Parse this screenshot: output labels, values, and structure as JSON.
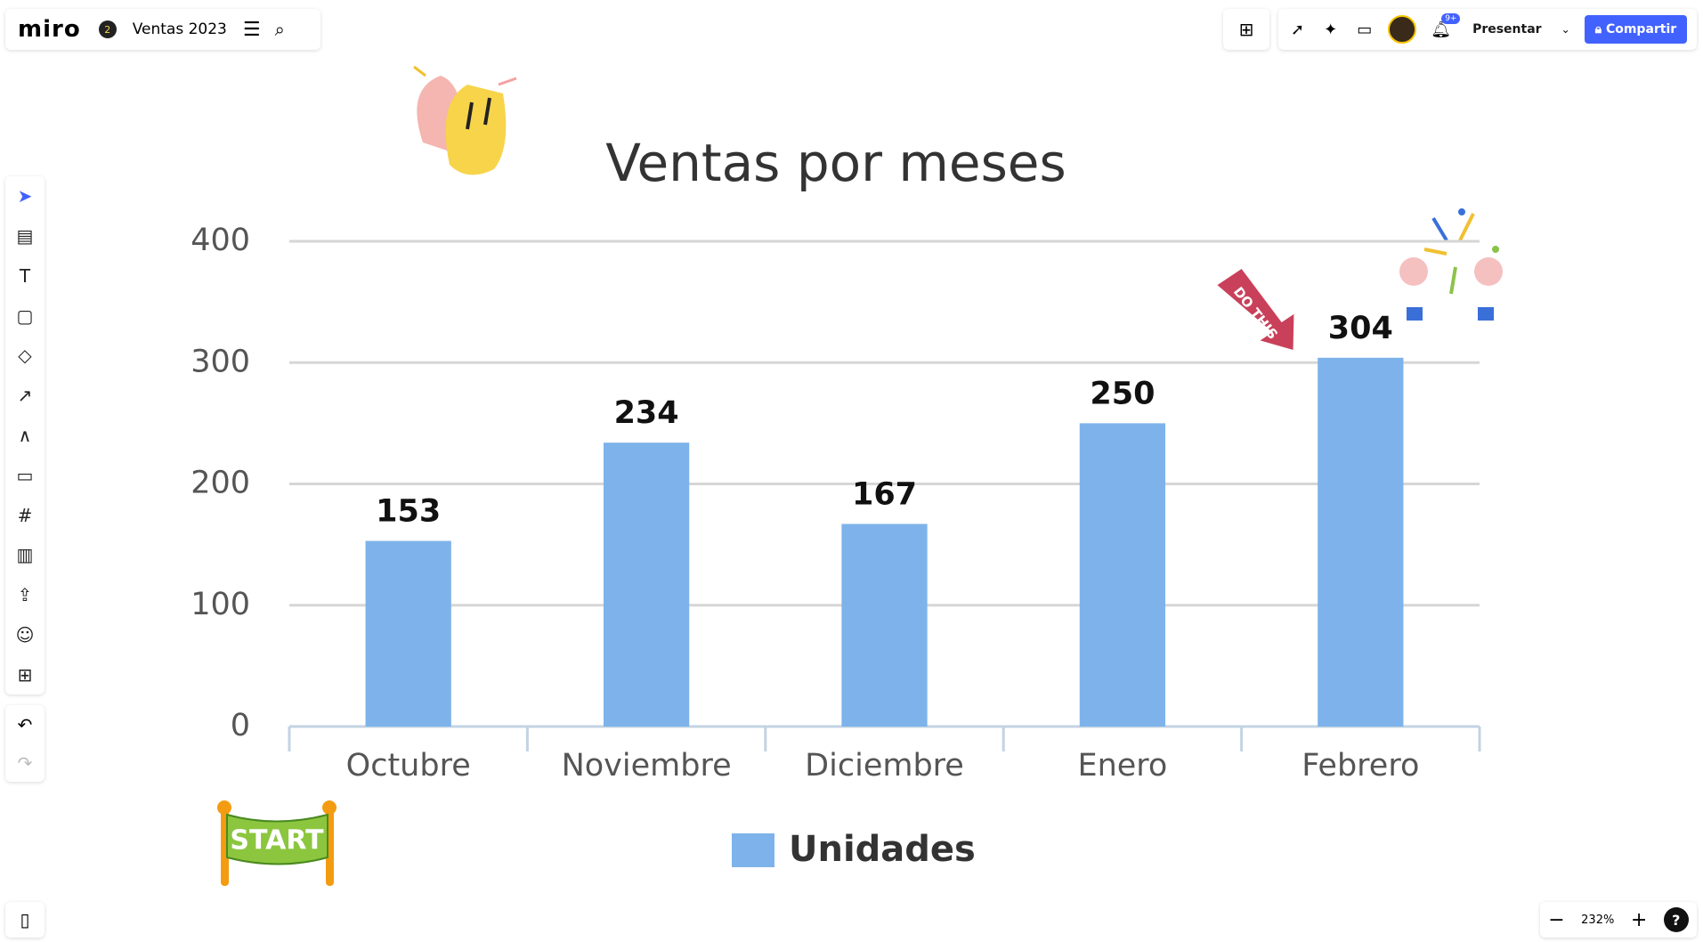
{
  "ui": {
    "logo": "miro",
    "badge": "2",
    "board_title": "Ventas 2023",
    "present": "Presentar",
    "share": "Compartir",
    "notifications": "9+",
    "zoom": "232%",
    "help": "?",
    "sticker_start": "START",
    "sticker_arrow": "DO THIS"
  },
  "chart_data": {
    "type": "bar",
    "title": "Ventas por meses",
    "categories": [
      "Octubre",
      "Noviembre",
      "Diciembre",
      "Enero",
      "Febrero"
    ],
    "series": [
      {
        "name": "Unidades",
        "color": "#7db3ea",
        "values": [
          153,
          234,
          167,
          250,
          304
        ]
      }
    ],
    "ylim": [
      0,
      400
    ],
    "yticks": [
      0,
      100,
      200,
      300,
      400
    ],
    "grid": true,
    "legend": "bottom"
  }
}
